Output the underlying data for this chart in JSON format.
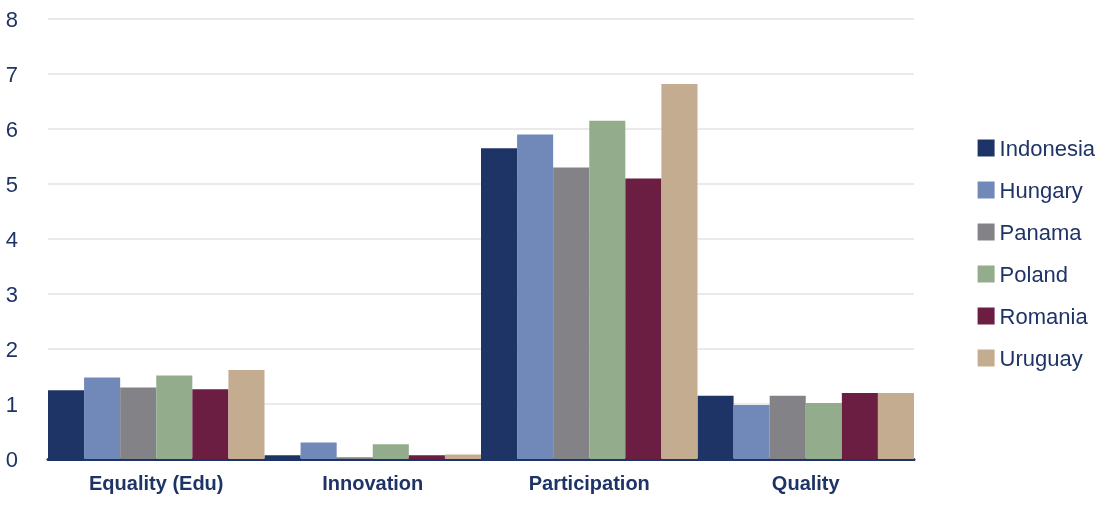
{
  "chart_data": {
    "type": "bar",
    "categories": [
      "Equality (Edu)",
      "Innovation",
      "Participation",
      "Quality"
    ],
    "series": [
      {
        "name": "Indonesia",
        "color": "#1f3466",
        "values": [
          1.25,
          0.07,
          5.65,
          1.15
        ]
      },
      {
        "name": "Hungary",
        "color": "#7189b9",
        "values": [
          1.48,
          0.3,
          5.9,
          0.98
        ]
      },
      {
        "name": "Panama",
        "color": "#838387",
        "values": [
          1.3,
          0.03,
          5.3,
          1.15
        ]
      },
      {
        "name": "Poland",
        "color": "#93ad8c",
        "values": [
          1.52,
          0.27,
          6.15,
          1.02
        ]
      },
      {
        "name": "Romania",
        "color": "#6b1e42",
        "values": [
          1.27,
          0.07,
          5.1,
          1.2
        ]
      },
      {
        "name": "Uruguay",
        "color": "#c3ac90",
        "values": [
          1.62,
          0.08,
          6.82,
          1.2
        ]
      }
    ],
    "ylim": [
      0,
      8
    ],
    "yticks": [
      0,
      1,
      2,
      3,
      4,
      5,
      6,
      7,
      8
    ],
    "grid": "y",
    "legend": "right"
  }
}
